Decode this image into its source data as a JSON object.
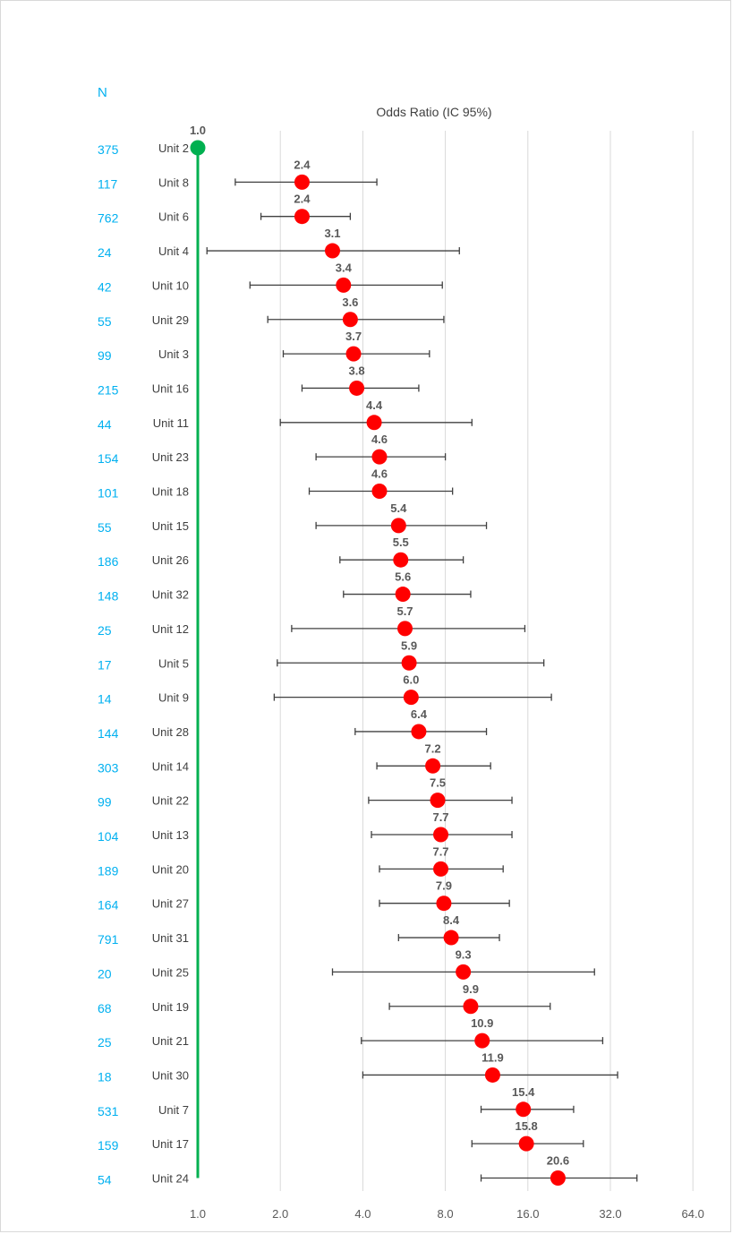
{
  "chart_data": {
    "type": "scatter",
    "title": "Odds Ratio (IC 95%)",
    "n_header": "N",
    "x_scale": "log2",
    "xlim": [
      1.0,
      64.0
    ],
    "x_ticks": [
      "1.0",
      "2.0",
      "4.0",
      "8.0",
      "16.0",
      "32.0",
      "64.0"
    ],
    "grid": "vertical",
    "reference": {
      "unit": "Unit 2",
      "n": "375",
      "or": 1.0,
      "label": "1.0",
      "color": "#00b050"
    },
    "point_color": "#ff0000",
    "rows": [
      {
        "unit": "Unit 8",
        "n": "117",
        "or": 2.4,
        "label": "2.4",
        "lo": 1.37,
        "hi": 4.5
      },
      {
        "unit": "Unit 6",
        "n": "762",
        "or": 2.4,
        "label": "2.4",
        "lo": 1.7,
        "hi": 3.6
      },
      {
        "unit": "Unit 4",
        "n": "24",
        "or": 3.1,
        "label": "3.1",
        "lo": 1.08,
        "hi": 9.0
      },
      {
        "unit": "Unit 10",
        "n": "42",
        "or": 3.4,
        "label": "3.4",
        "lo": 1.55,
        "hi": 7.8
      },
      {
        "unit": "Unit 29",
        "n": "55",
        "or": 3.6,
        "label": "3.6",
        "lo": 1.8,
        "hi": 7.9
      },
      {
        "unit": "Unit 3",
        "n": "99",
        "or": 3.7,
        "label": "3.7",
        "lo": 2.05,
        "hi": 7.0
      },
      {
        "unit": "Unit 16",
        "n": "215",
        "or": 3.8,
        "label": "3.8",
        "lo": 2.4,
        "hi": 6.4
      },
      {
        "unit": "Unit 11",
        "n": "44",
        "or": 4.4,
        "label": "4.4",
        "lo": 2.0,
        "hi": 10.0
      },
      {
        "unit": "Unit 23",
        "n": "154",
        "or": 4.6,
        "label": "4.6",
        "lo": 2.7,
        "hi": 8.0
      },
      {
        "unit": "Unit 18",
        "n": "101",
        "or": 4.6,
        "label": "4.6",
        "lo": 2.55,
        "hi": 8.5
      },
      {
        "unit": "Unit 15",
        "n": "55",
        "or": 5.4,
        "label": "5.4",
        "lo": 2.7,
        "hi": 11.3
      },
      {
        "unit": "Unit 26",
        "n": "186",
        "or": 5.5,
        "label": "5.5",
        "lo": 3.3,
        "hi": 9.3
      },
      {
        "unit": "Unit 32",
        "n": "148",
        "or": 5.6,
        "label": "5.6",
        "lo": 3.4,
        "hi": 9.9
      },
      {
        "unit": "Unit 12",
        "n": "25",
        "or": 5.7,
        "label": "5.7",
        "lo": 2.2,
        "hi": 15.6
      },
      {
        "unit": "Unit 5",
        "n": "17",
        "or": 5.9,
        "label": "5.9",
        "lo": 1.95,
        "hi": 18.3
      },
      {
        "unit": "Unit 9",
        "n": "14",
        "or": 6.0,
        "label": "6.0",
        "lo": 1.9,
        "hi": 19.5
      },
      {
        "unit": "Unit 28",
        "n": "144",
        "or": 6.4,
        "label": "6.4",
        "lo": 3.75,
        "hi": 11.3
      },
      {
        "unit": "Unit 14",
        "n": "303",
        "or": 7.2,
        "label": "7.2",
        "lo": 4.5,
        "hi": 11.7
      },
      {
        "unit": "Unit 22",
        "n": "99",
        "or": 7.5,
        "label": "7.5",
        "lo": 4.2,
        "hi": 14.0
      },
      {
        "unit": "Unit 13",
        "n": "104",
        "or": 7.7,
        "label": "7.7",
        "lo": 4.3,
        "hi": 14.0
      },
      {
        "unit": "Unit 20",
        "n": "189",
        "or": 7.7,
        "label": "7.7",
        "lo": 4.6,
        "hi": 13.0
      },
      {
        "unit": "Unit 27",
        "n": "164",
        "or": 7.9,
        "label": "7.9",
        "lo": 4.6,
        "hi": 13.7
      },
      {
        "unit": "Unit 31",
        "n": "791",
        "or": 8.4,
        "label": "8.4",
        "lo": 5.4,
        "hi": 12.6
      },
      {
        "unit": "Unit 25",
        "n": "20",
        "or": 9.3,
        "label": "9.3",
        "lo": 3.1,
        "hi": 28.0
      },
      {
        "unit": "Unit 19",
        "n": "68",
        "or": 9.9,
        "label": "9.9",
        "lo": 5.0,
        "hi": 19.3
      },
      {
        "unit": "Unit 21",
        "n": "25",
        "or": 10.9,
        "label": "10.9",
        "lo": 3.95,
        "hi": 30.0
      },
      {
        "unit": "Unit 30",
        "n": "18",
        "or": 11.9,
        "label": "11.9",
        "lo": 4.0,
        "hi": 34.0
      },
      {
        "unit": "Unit 7",
        "n": "531",
        "or": 15.4,
        "label": "15.4",
        "lo": 10.8,
        "hi": 23.5
      },
      {
        "unit": "Unit 17",
        "n": "159",
        "or": 15.8,
        "label": "15.8",
        "lo": 10.0,
        "hi": 25.5
      },
      {
        "unit": "Unit 24",
        "n": "54",
        "or": 20.6,
        "label": "20.6",
        "lo": 10.8,
        "hi": 40.0
      }
    ]
  }
}
